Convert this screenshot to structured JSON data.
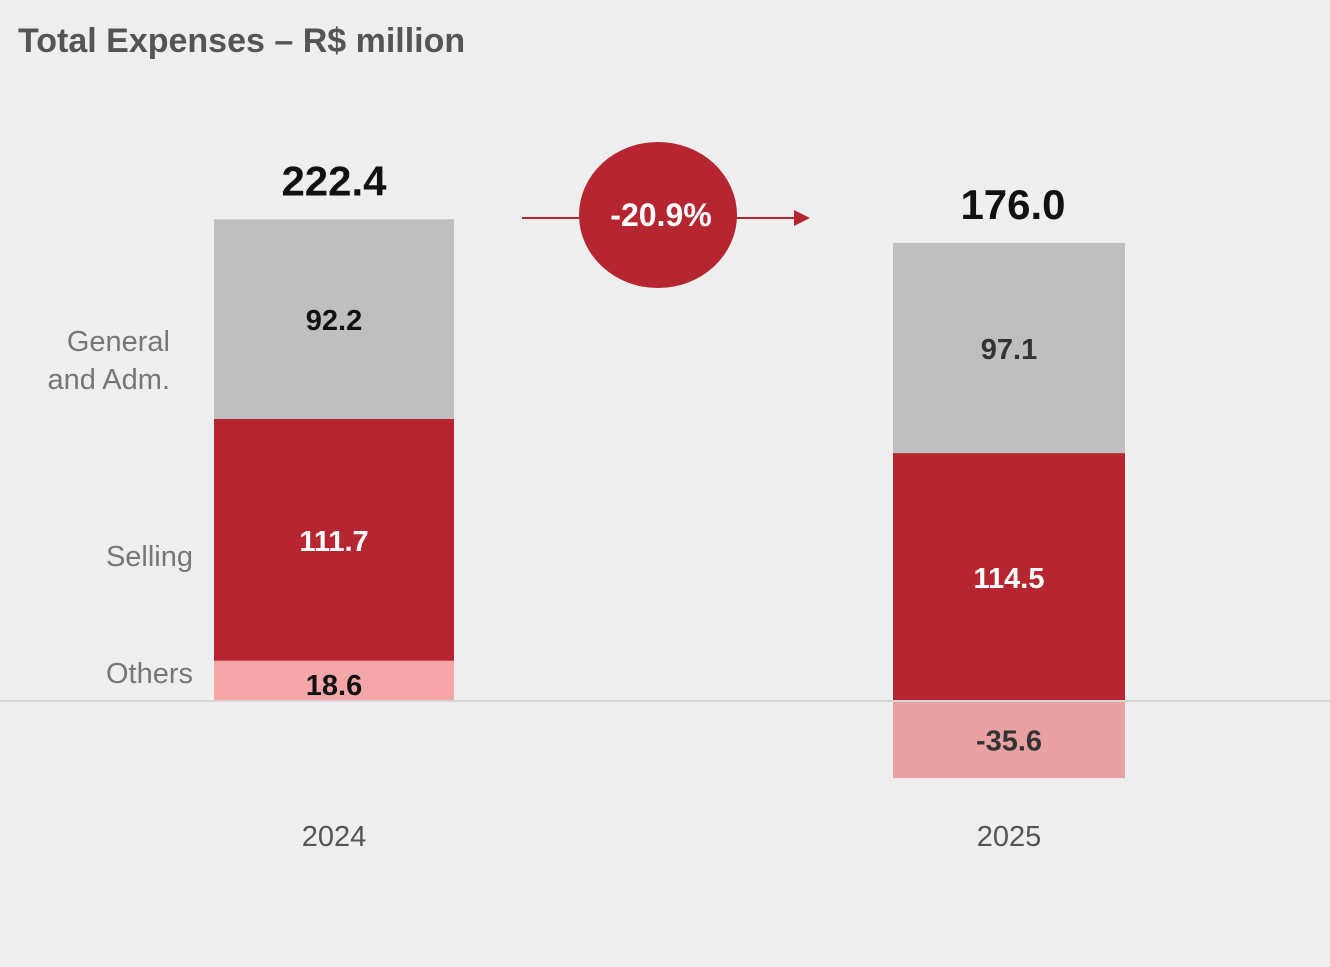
{
  "chart_data": {
    "type": "bar",
    "stacked": true,
    "title": "Total Expenses – R$ million",
    "categories": [
      "2024",
      "2025"
    ],
    "series": [
      {
        "name": "Others",
        "values": [
          18.6,
          -35.6
        ],
        "colors": [
          "#f4a6a8",
          "#e9a1a3"
        ],
        "label_colors": [
          "#111111",
          "#333333"
        ]
      },
      {
        "name": "Selling",
        "values": [
          111.7,
          114.5
        ],
        "colors": [
          "#b52630",
          "#b52630"
        ],
        "label_colors": [
          "#ffffff",
          "#ffffff"
        ]
      },
      {
        "name": "General and Adm.",
        "values": [
          92.2,
          97.1
        ],
        "colors": [
          "#bfbfbf",
          "#bfbfbf"
        ],
        "label_colors": [
          "#111111",
          "#333333"
        ]
      }
    ],
    "legend_text": {
      "general": [
        "General",
        "and Adm."
      ],
      "selling": "Selling",
      "others": "Others"
    },
    "totals": [
      "222.4",
      "176.0"
    ],
    "segment_labels": [
      [
        "18.6",
        "111.7",
        "92.2"
      ],
      [
        "-35.6",
        "114.5",
        "97.1"
      ]
    ],
    "change_label": "-20.9%",
    "accent_color": "#b52630"
  }
}
